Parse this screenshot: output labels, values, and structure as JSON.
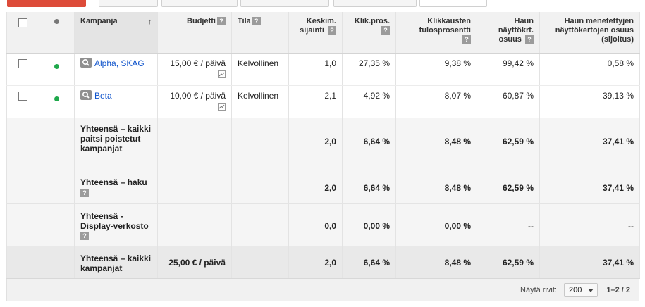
{
  "toolbar": {
    "buttons": [
      {
        "label": ""
      },
      {
        "label": ""
      },
      {
        "label": ""
      },
      {
        "label": ""
      },
      {
        "label": ""
      },
      {
        "label": ""
      }
    ]
  },
  "table": {
    "headers": {
      "campaign": "Kampanja",
      "sort_arrow": "↑",
      "budget": "Budjetti",
      "status": "Tila",
      "avg_pos": "Keskim. sijainti",
      "ctr": "Klik.pros.",
      "conv_rate": "Klikkausten tulosprosentti",
      "search_is": "Haun näyttökrt. osuus",
      "search_lost_is": "Haun menetettyjen näyttökertojen osuus (sijoitus)",
      "help": "?"
    },
    "rows": [
      {
        "campaign": "Alpha, SKAG",
        "budget": "15,00 € / päivä",
        "status": "Kelvollinen",
        "avg_pos": "1,0",
        "ctr": "27,35 %",
        "conv_rate": "9,38 %",
        "search_is": "99,42 %",
        "search_lost_is": "0,58 %"
      },
      {
        "campaign": "Beta",
        "budget": "10,00 € / päivä",
        "status": "Kelvollinen",
        "avg_pos": "2,1",
        "ctr": "4,92 %",
        "conv_rate": "8,07 %",
        "search_is": "60,87 %",
        "search_lost_is": "39,13 %"
      }
    ],
    "totals": [
      {
        "label": "Yhteensä – kaikki paitsi poistetut kampanjat",
        "budget": "",
        "avg_pos": "2,0",
        "ctr": "6,64 %",
        "conv_rate": "8,48 %",
        "search_is": "62,59 %",
        "search_lost_is": "37,41 %"
      },
      {
        "label": "Yhteensä – haku",
        "budget": "",
        "avg_pos": "2,0",
        "ctr": "6,64 %",
        "conv_rate": "8,48 %",
        "search_is": "62,59 %",
        "search_lost_is": "37,41 %"
      },
      {
        "label": "Yhteensä - Display-verkosto",
        "budget": "",
        "avg_pos": "0,0",
        "ctr": "0,00 %",
        "conv_rate": "0,00 %",
        "search_is": "--",
        "search_lost_is": "--"
      },
      {
        "label": "Yhteensä – kaikki kampanjat",
        "budget": "25,00 € / päivä",
        "avg_pos": "2,0",
        "ctr": "6,64 %",
        "conv_rate": "8,48 %",
        "search_is": "62,59 %",
        "search_lost_is": "37,41 %"
      }
    ]
  },
  "footer": {
    "rows_label": "Näytä rivit:",
    "rows_value": "200",
    "page_info": "1–2 / 2"
  },
  "colors": {
    "accent": "#dd4b39",
    "link": "#1155cc",
    "status_ok": "#1fa84b"
  }
}
